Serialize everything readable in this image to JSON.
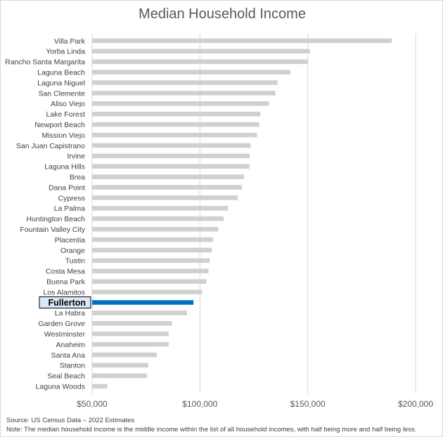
{
  "chart_data": {
    "type": "bar",
    "orientation": "horizontal",
    "title": "Median Household Income",
    "categories": [
      "Villa Park",
      "Yorba Linda",
      "Rancho Santa Margarita",
      "Laguna Beach",
      "Laguna Niguel",
      "San Clemente",
      "Aliso Viejo",
      "Lake Forest",
      "Newport Beach",
      "Mission Viejo",
      "San Juan Capistrano",
      "Irvine",
      "Laguna Hills",
      "Brea",
      "Dana Point",
      "Cypress",
      "La Palma",
      "Huntington Beach",
      "Fountain Valley City",
      "Placentia",
      "Orange",
      "Tustin",
      "Costa Mesa",
      "Buena Park",
      "Los Alamitos",
      "Fullerton",
      "La Habra",
      "Garden Grove",
      "Westminster",
      "Anaheim",
      "Santa Ana",
      "Stanton",
      "Seal Beach",
      "Laguna Woods"
    ],
    "values": [
      189000,
      151000,
      150000,
      142000,
      136000,
      135000,
      132000,
      128000,
      127500,
      126500,
      123500,
      123000,
      123000,
      120500,
      119500,
      117500,
      113000,
      111000,
      108500,
      106000,
      105500,
      104500,
      104000,
      103000,
      101000,
      97000,
      94000,
      87000,
      85500,
      85500,
      80000,
      76000,
      75500,
      57000
    ],
    "highlight": "Fullerton",
    "xlim": [
      50000,
      200000
    ],
    "x_ticks": [
      "$50,000",
      "$100,000",
      "$150,000",
      "$200,000"
    ],
    "x_tick_values": [
      50000,
      100000,
      150000,
      200000
    ],
    "xlabel": "",
    "ylabel": "",
    "grid": "vertical",
    "colors": {
      "bar": "#d0d0d0",
      "highlight": "#0070c0",
      "grid": "#d9d9d9"
    }
  },
  "footer": {
    "source": "Source: US Census Data – 2022 Estimates",
    "note": "Note: The median household income is the middle income within the list of all household incomes, with half being more and half being less."
  }
}
